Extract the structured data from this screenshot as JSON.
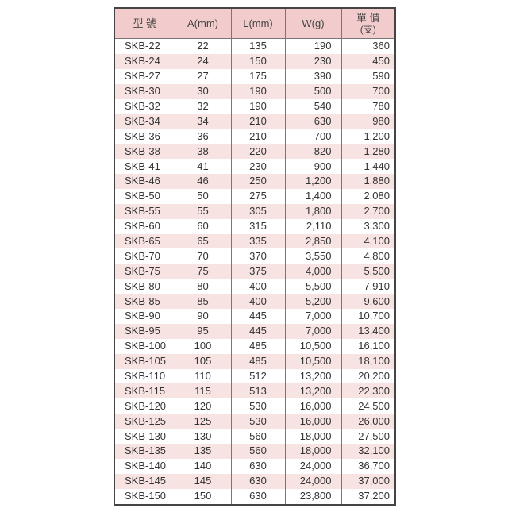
{
  "headers": [
    "型 號",
    "A(mm)",
    "L(mm)",
    "W(g)",
    "單 價",
    "(支)"
  ],
  "rows": [
    [
      "SKB-22",
      "22",
      "135",
      "190",
      "360"
    ],
    [
      "SKB-24",
      "24",
      "150",
      "230",
      "450"
    ],
    [
      "SKB-27",
      "27",
      "175",
      "390",
      "590"
    ],
    [
      "SKB-30",
      "30",
      "190",
      "500",
      "700"
    ],
    [
      "SKB-32",
      "32",
      "190",
      "540",
      "780"
    ],
    [
      "SKB-34",
      "34",
      "210",
      "630",
      "980"
    ],
    [
      "SKB-36",
      "36",
      "210",
      "700",
      "1,200"
    ],
    [
      "SKB-38",
      "38",
      "220",
      "820",
      "1,280"
    ],
    [
      "SKB-41",
      "41",
      "230",
      "900",
      "1,440"
    ],
    [
      "SKB-46",
      "46",
      "250",
      "1,200",
      "1,880"
    ],
    [
      "SKB-50",
      "50",
      "275",
      "1,400",
      "2,080"
    ],
    [
      "SKB-55",
      "55",
      "305",
      "1,800",
      "2,700"
    ],
    [
      "SKB-60",
      "60",
      "315",
      "2,110",
      "3,300"
    ],
    [
      "SKB-65",
      "65",
      "335",
      "2,850",
      "4,100"
    ],
    [
      "SKB-70",
      "70",
      "370",
      "3,550",
      "4,800"
    ],
    [
      "SKB-75",
      "75",
      "375",
      "4,000",
      "5,500"
    ],
    [
      "SKB-80",
      "80",
      "400",
      "5,500",
      "7,910"
    ],
    [
      "SKB-85",
      "85",
      "400",
      "5,200",
      "9,600"
    ],
    [
      "SKB-90",
      "90",
      "445",
      "7,000",
      "10,700"
    ],
    [
      "SKB-95",
      "95",
      "445",
      "7,000",
      "13,400"
    ],
    [
      "SKB-100",
      "100",
      "485",
      "10,500",
      "16,100"
    ],
    [
      "SKB-105",
      "105",
      "485",
      "10,500",
      "18,100"
    ],
    [
      "SKB-110",
      "110",
      "512",
      "13,200",
      "20,200"
    ],
    [
      "SKB-115",
      "115",
      "513",
      "13,200",
      "22,300"
    ],
    [
      "SKB-120",
      "120",
      "530",
      "16,000",
      "24,500"
    ],
    [
      "SKB-125",
      "125",
      "530",
      "16,000",
      "26,000"
    ],
    [
      "SKB-130",
      "130",
      "560",
      "18,000",
      "27,500"
    ],
    [
      "SKB-135",
      "135",
      "560",
      "18,000",
      "32,100"
    ],
    [
      "SKB-140",
      "140",
      "630",
      "24,000",
      "36,700"
    ],
    [
      "SKB-145",
      "145",
      "630",
      "24,000",
      "37,000"
    ],
    [
      "SKB-150",
      "150",
      "630",
      "23,800",
      "37,200"
    ]
  ],
  "colors": {
    "header": "#f2cccc",
    "alt_row": "#f8e3e3"
  }
}
